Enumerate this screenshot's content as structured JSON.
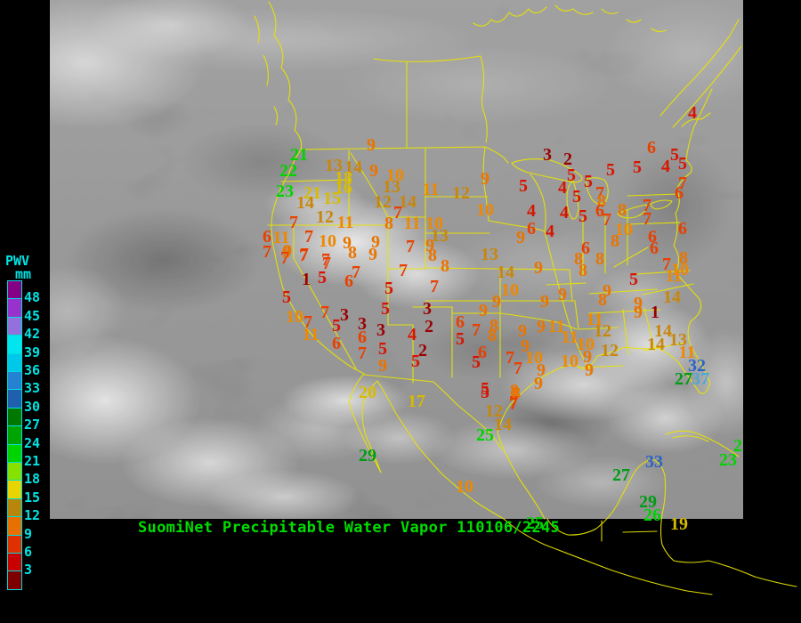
{
  "caption": {
    "text": "SuomiNet Precipitable Water Vapor 110106/2245",
    "color": "#00dd00"
  },
  "colorbar": {
    "title": "PWV",
    "unit": "mm",
    "label_color": "#00e4e4",
    "blocks": [
      {
        "label": "48",
        "color": "#860086"
      },
      {
        "label": "45",
        "color": "#9932cc"
      },
      {
        "label": "42",
        "color": "#9370db"
      },
      {
        "label": "39",
        "color": "#00e5ee"
      },
      {
        "label": "36",
        "color": "#00c8e8"
      },
      {
        "label": "33",
        "color": "#2582d2"
      },
      {
        "label": "30",
        "color": "#1f5fae"
      },
      {
        "label": "27",
        "color": "#007800"
      },
      {
        "label": "24",
        "color": "#00a400"
      },
      {
        "label": "21",
        "color": "#00d400"
      },
      {
        "label": "18",
        "color": "#86e000"
      },
      {
        "label": "15",
        "color": "#e8d400"
      },
      {
        "label": "12",
        "color": "#b8860b"
      },
      {
        "label": "9",
        "color": "#e87000"
      },
      {
        "label": "6",
        "color": "#e03000"
      },
      {
        "label": "3",
        "color": "#c80000"
      },
      {
        "label": "",
        "color": "#7c0000"
      }
    ]
  },
  "palette": {
    "D": "#9c0000",
    "R": "#d81400",
    "F": "#e84000",
    "O": "#ea7400",
    "P": "#ee8800",
    "G": "#c8860b",
    "Y": "#d8ba00",
    "N": "#00d400",
    "E": "#009c14",
    "B": "#2864c8",
    "S": "#48a8d8"
  },
  "stations": [
    [
      "9",
      417,
      164,
      "O"
    ],
    [
      "21",
      336,
      175,
      "N"
    ],
    [
      "22",
      324,
      193,
      "N"
    ],
    [
      "23",
      320,
      216,
      "N"
    ],
    [
      "13",
      375,
      187,
      "G"
    ],
    [
      "14",
      397,
      189,
      "G"
    ],
    [
      "9",
      420,
      193,
      "O"
    ],
    [
      "10",
      444,
      198,
      "P"
    ],
    [
      "18",
      386,
      201,
      "Y"
    ],
    [
      "16",
      386,
      212,
      "Y"
    ],
    [
      "13",
      440,
      211,
      "G"
    ],
    [
      "11",
      484,
      214,
      "P"
    ],
    [
      "21",
      351,
      218,
      "Y"
    ],
    [
      "15",
      373,
      224,
      "Y"
    ],
    [
      "14",
      343,
      229,
      "G"
    ],
    [
      "12",
      365,
      245,
      "G"
    ],
    [
      "12",
      430,
      228,
      "G"
    ],
    [
      "14",
      458,
      228,
      "G"
    ],
    [
      "7",
      447,
      240,
      "F"
    ],
    [
      "7",
      330,
      251,
      "F"
    ],
    [
      "11",
      388,
      251,
      "P"
    ],
    [
      "8",
      437,
      252,
      "O"
    ],
    [
      "11",
      463,
      252,
      "P"
    ],
    [
      "10",
      488,
      252,
      "P"
    ],
    [
      "13",
      494,
      266,
      "G"
    ],
    [
      "6",
      300,
      267,
      "F"
    ],
    [
      "11",
      316,
      268,
      "P"
    ],
    [
      "7",
      347,
      267,
      "F"
    ],
    [
      "10",
      368,
      272,
      "P"
    ],
    [
      "9",
      390,
      274,
      "O"
    ],
    [
      "9",
      422,
      273,
      "O"
    ],
    [
      "7",
      461,
      278,
      "F"
    ],
    [
      "9",
      483,
      277,
      "O"
    ],
    [
      "7",
      300,
      284,
      "F"
    ],
    [
      "9",
      322,
      285,
      "O"
    ],
    [
      "7",
      341,
      288,
      "F"
    ],
    [
      "8",
      396,
      285,
      "O"
    ],
    [
      "9",
      419,
      287,
      "O"
    ],
    [
      "7",
      366,
      293,
      "F"
    ],
    [
      "8",
      486,
      288,
      "O"
    ],
    [
      "9",
      545,
      202,
      "O"
    ],
    [
      "12",
      518,
      218,
      "G"
    ],
    [
      "10",
      545,
      237,
      "P"
    ],
    [
      "3",
      615,
      175,
      "D"
    ],
    [
      "2",
      638,
      180,
      "D"
    ],
    [
      "5",
      588,
      210,
      "R"
    ],
    [
      "5",
      642,
      198,
      "R"
    ],
    [
      "4",
      632,
      212,
      "R"
    ],
    [
      "5",
      661,
      205,
      "R"
    ],
    [
      "5",
      686,
      192,
      "R"
    ],
    [
      "5",
      716,
      189,
      "R"
    ],
    [
      "5",
      648,
      222,
      "R"
    ],
    [
      "4",
      597,
      238,
      "R"
    ],
    [
      "4",
      634,
      240,
      "R"
    ],
    [
      "5",
      655,
      244,
      "R"
    ],
    [
      "4",
      618,
      261,
      "R"
    ],
    [
      "6",
      597,
      258,
      "F"
    ],
    [
      "9",
      585,
      268,
      "O"
    ],
    [
      "13",
      550,
      287,
      "G"
    ],
    [
      "7",
      674,
      218,
      "F"
    ],
    [
      "8",
      676,
      227,
      "O"
    ],
    [
      "6",
      674,
      238,
      "F"
    ],
    [
      "8",
      699,
      237,
      "O"
    ],
    [
      "6",
      732,
      167,
      "F"
    ],
    [
      "5",
      758,
      175,
      "R"
    ],
    [
      "4",
      748,
      188,
      "R"
    ],
    [
      "5",
      767,
      185,
      "R"
    ],
    [
      "4",
      778,
      128,
      "R"
    ],
    [
      "7",
      767,
      207,
      "F"
    ],
    [
      "6",
      763,
      218,
      "F"
    ],
    [
      "7",
      727,
      232,
      "F"
    ],
    [
      "7",
      727,
      247,
      "F"
    ],
    [
      "7",
      682,
      248,
      "F"
    ],
    [
      "10",
      701,
      259,
      "P"
    ],
    [
      "8",
      691,
      272,
      "O"
    ],
    [
      "6",
      733,
      267,
      "F"
    ],
    [
      "6",
      735,
      280,
      "F"
    ],
    [
      "6",
      658,
      280,
      "F"
    ],
    [
      "8",
      650,
      292,
      "O"
    ],
    [
      "8",
      674,
      292,
      "O"
    ],
    [
      "8",
      655,
      305,
      "O"
    ],
    [
      "5",
      712,
      315,
      "R"
    ],
    [
      "6",
      767,
      258,
      "F"
    ],
    [
      "8",
      768,
      291,
      "O"
    ],
    [
      "7",
      749,
      298,
      "F"
    ],
    [
      "10",
      764,
      304,
      "P"
    ],
    [
      "11",
      757,
      311,
      "P"
    ],
    [
      "14",
      755,
      335,
      "G"
    ],
    [
      "9",
      717,
      342,
      "O"
    ],
    [
      "9",
      717,
      352,
      "O"
    ],
    [
      "1",
      736,
      352,
      "D"
    ],
    [
      "14",
      745,
      373,
      "G"
    ],
    [
      "13",
      762,
      383,
      "G"
    ],
    [
      "14",
      737,
      388,
      "G"
    ],
    [
      "11",
      772,
      397,
      "P"
    ],
    [
      "32",
      783,
      412,
      "B"
    ],
    [
      "27",
      768,
      427,
      "E"
    ],
    [
      "37",
      787,
      427,
      "S"
    ],
    [
      "2",
      829,
      502,
      "N"
    ],
    [
      "23",
      818,
      518,
      "N"
    ],
    [
      "8",
      500,
      300,
      "O"
    ],
    [
      "7",
      488,
      323,
      "F"
    ],
    [
      "14",
      568,
      307,
      "G"
    ],
    [
      "10",
      573,
      327,
      "P"
    ],
    [
      "9",
      605,
      302,
      "O"
    ],
    [
      "9",
      558,
      340,
      "O"
    ],
    [
      "9",
      543,
      350,
      "O"
    ],
    [
      "9",
      612,
      340,
      "O"
    ],
    [
      "9",
      632,
      332,
      "O"
    ],
    [
      "9",
      682,
      328,
      "O"
    ],
    [
      "8",
      677,
      338,
      "O"
    ],
    [
      "6",
      517,
      363,
      "F"
    ],
    [
      "7",
      535,
      372,
      "F"
    ],
    [
      "8",
      555,
      367,
      "O"
    ],
    [
      "8",
      553,
      378,
      "O"
    ],
    [
      "9",
      587,
      373,
      "O"
    ],
    [
      "9",
      608,
      368,
      "O"
    ],
    [
      "11",
      625,
      368,
      "P"
    ],
    [
      "11",
      640,
      380,
      "P"
    ],
    [
      "11",
      668,
      360,
      "P"
    ],
    [
      "12",
      677,
      373,
      "G"
    ],
    [
      "10",
      658,
      388,
      "P"
    ],
    [
      "12",
      685,
      395,
      "G"
    ],
    [
      "10",
      640,
      407,
      "P"
    ],
    [
      "9",
      660,
      402,
      "O"
    ],
    [
      "9",
      662,
      417,
      "O"
    ],
    [
      "5",
      517,
      382,
      "R"
    ],
    [
      "6",
      542,
      397,
      "F"
    ],
    [
      "5",
      535,
      408,
      "R"
    ],
    [
      "7",
      573,
      403,
      "F"
    ],
    [
      "7",
      582,
      415,
      "F"
    ],
    [
      "9",
      590,
      390,
      "O"
    ],
    [
      "10",
      600,
      403,
      "P"
    ],
    [
      "9",
      608,
      417,
      "O"
    ],
    [
      "9",
      605,
      432,
      "O"
    ],
    [
      "5",
      545,
      438,
      "R"
    ],
    [
      "8",
      578,
      440,
      "O"
    ],
    [
      "7",
      577,
      453,
      "F"
    ],
    [
      "12",
      555,
      463,
      "G"
    ],
    [
      "14",
      565,
      478,
      "G"
    ],
    [
      "9",
      323,
      283,
      "O"
    ],
    [
      "7",
      320,
      291,
      "F"
    ],
    [
      "7",
      342,
      287,
      "F"
    ],
    [
      "7",
      367,
      297,
      "F"
    ],
    [
      "7",
      400,
      307,
      "F"
    ],
    [
      "1",
      344,
      315,
      "D"
    ],
    [
      "5",
      362,
      313,
      "R"
    ],
    [
      "6",
      392,
      317,
      "F"
    ],
    [
      "5",
      437,
      325,
      "R"
    ],
    [
      "7",
      453,
      305,
      "F"
    ],
    [
      "5",
      322,
      335,
      "R"
    ],
    [
      "5",
      433,
      348,
      "R"
    ],
    [
      "3",
      480,
      348,
      "D"
    ],
    [
      "10",
      331,
      357,
      "P"
    ],
    [
      "7",
      346,
      363,
      "F"
    ],
    [
      "7",
      365,
      352,
      "F"
    ],
    [
      "3",
      387,
      355,
      "D"
    ],
    [
      "5",
      378,
      367,
      "R"
    ],
    [
      "3",
      407,
      365,
      "D"
    ],
    [
      "11",
      349,
      377,
      "P"
    ],
    [
      "3",
      428,
      372,
      "D"
    ],
    [
      "6",
      407,
      380,
      "F"
    ],
    [
      "4",
      463,
      377,
      "R"
    ],
    [
      "2",
      482,
      368,
      "D"
    ],
    [
      "6",
      378,
      387,
      "F"
    ],
    [
      "5",
      430,
      393,
      "R"
    ],
    [
      "2",
      475,
      395,
      "D"
    ],
    [
      "7",
      407,
      398,
      "F"
    ],
    [
      "5",
      467,
      407,
      "R"
    ],
    [
      "9",
      430,
      412,
      "O"
    ],
    [
      "20",
      413,
      442,
      "Y"
    ],
    [
      "17",
      468,
      452,
      "Y"
    ],
    [
      "5",
      545,
      442,
      "R"
    ],
    [
      "8",
      580,
      443,
      "O"
    ],
    [
      "7",
      577,
      455,
      "F"
    ],
    [
      "25",
      545,
      490,
      "N"
    ],
    [
      "29",
      413,
      513,
      "E"
    ],
    [
      "10",
      522,
      548,
      "P"
    ],
    [
      "33",
      735,
      520,
      "B"
    ],
    [
      "27",
      698,
      535,
      "E"
    ],
    [
      "29",
      728,
      565,
      "E"
    ],
    [
      "26",
      733,
      580,
      "N"
    ],
    [
      "19",
      763,
      590,
      "Y"
    ],
    [
      "25",
      601,
      589,
      "N"
    ]
  ]
}
